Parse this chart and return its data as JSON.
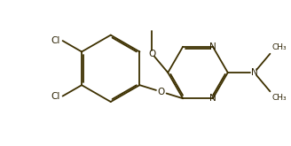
{
  "bg_color": "#ffffff",
  "line_color": "#3d3000",
  "text_color": "#2a2000",
  "line_width": 1.3,
  "font_size": 7.5,
  "small_font_size": 6.5,
  "figsize": [
    3.28,
    1.65
  ],
  "dpi": 100,
  "xlim": [
    0,
    10.5
  ],
  "ylim": [
    0,
    5.0
  ]
}
